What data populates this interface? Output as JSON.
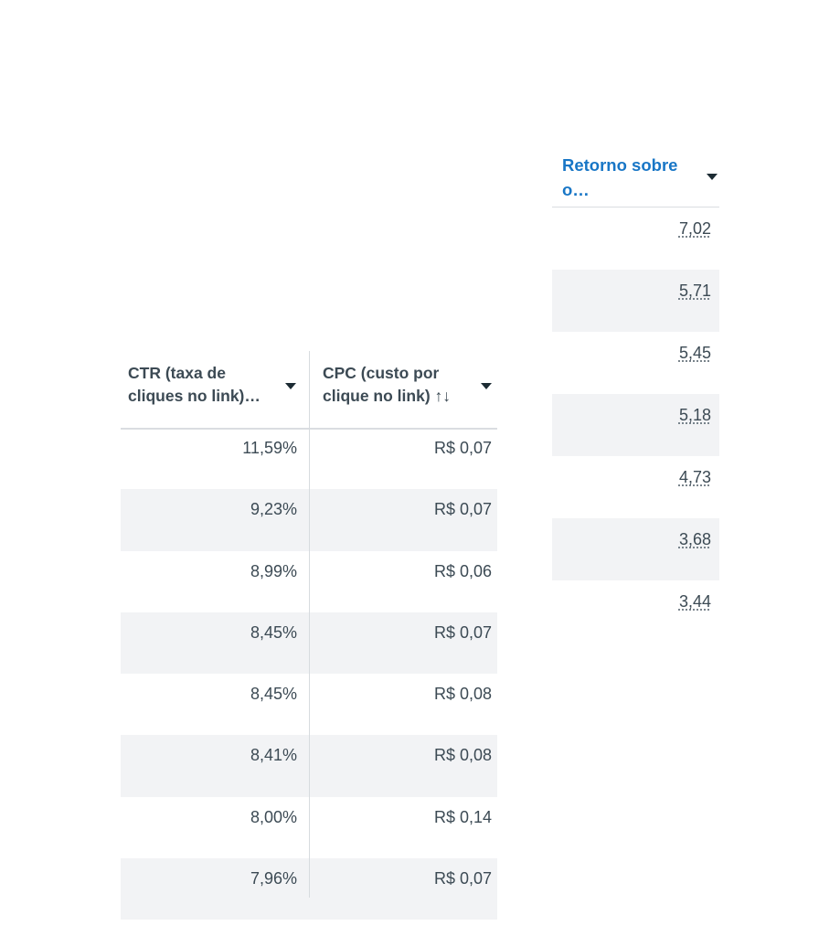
{
  "right_table": {
    "header": "Retorno sobre\no…",
    "rows": [
      "7,02",
      "5,71",
      "5,45",
      "5,18",
      "4,73",
      "3,68",
      "3,44"
    ]
  },
  "left_table": {
    "headers": {
      "ctr": "CTR (taxa de\ncliques no link)…",
      "cpc": "CPC (custo por\nclique no link) ↑↓"
    },
    "rows": [
      {
        "ctr": "11,59%",
        "cpc": "R$ 0,07"
      },
      {
        "ctr": "9,23%",
        "cpc": "R$ 0,07"
      },
      {
        "ctr": "8,99%",
        "cpc": "R$ 0,06"
      },
      {
        "ctr": "8,45%",
        "cpc": "R$ 0,07"
      },
      {
        "ctr": "8,45%",
        "cpc": "R$ 0,08"
      },
      {
        "ctr": "8,41%",
        "cpc": "R$ 0,08"
      },
      {
        "ctr": "8,00%",
        "cpc": "R$ 0,14"
      },
      {
        "ctr": "7,96%",
        "cpc": "R$ 0,07"
      }
    ]
  },
  "colors": {
    "header_link": "#1876c6",
    "row_alt": "#f2f3f5",
    "text": "#3c4a54"
  },
  "icons": {
    "sort_menu": "caret-down-icon"
  }
}
